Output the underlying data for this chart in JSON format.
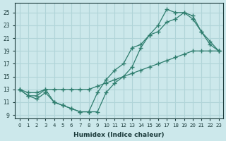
{
  "xlabel": "Humidex (Indice chaleur)",
  "xlim": [
    -0.5,
    23.5
  ],
  "ylim": [
    8.5,
    26.5
  ],
  "xticks": [
    0,
    1,
    2,
    3,
    4,
    5,
    6,
    7,
    8,
    9,
    10,
    11,
    12,
    13,
    14,
    15,
    16,
    17,
    18,
    19,
    20,
    21,
    22,
    23
  ],
  "yticks": [
    9,
    11,
    13,
    15,
    17,
    19,
    21,
    23,
    25
  ],
  "bg_color": "#cce8eb",
  "grid_color": "#b0d4d8",
  "line_color": "#2e7d6e",
  "line1_x": [
    0,
    1,
    2,
    3,
    4,
    5,
    6,
    7,
    8,
    9,
    10,
    11,
    12,
    13,
    14,
    15,
    16,
    17,
    18,
    19,
    20,
    21,
    22,
    23
  ],
  "line1_y": [
    13,
    12,
    11.5,
    12.5,
    11,
    10.5,
    10,
    9.5,
    9.5,
    12.5,
    14.5,
    16,
    17,
    19.5,
    20,
    21.5,
    22,
    23.5,
    24,
    25,
    24.5,
    22,
    20.5,
    19
  ],
  "line2_x": [
    0,
    1,
    2,
    3,
    4,
    5,
    6,
    7,
    8,
    9,
    10,
    11,
    12,
    13,
    14,
    15,
    16,
    17,
    18,
    19,
    20,
    21,
    22,
    23
  ],
  "line2_y": [
    13,
    12.5,
    12.5,
    13,
    13,
    13,
    13,
    13,
    13,
    13.5,
    14,
    14.5,
    15,
    15.5,
    16,
    16.5,
    17,
    17.5,
    18,
    18.5,
    19,
    19,
    19,
    19
  ],
  "line3_x": [
    0,
    1,
    2,
    3,
    4,
    5,
    6,
    7,
    8,
    9,
    10,
    11,
    12,
    13,
    14,
    15,
    16,
    17,
    18,
    19,
    20,
    21,
    22,
    23
  ],
  "line3_y": [
    13,
    12,
    12,
    13,
    11,
    10.5,
    10,
    9.5,
    9.5,
    9.5,
    12.5,
    14,
    15,
    16.5,
    19.5,
    21.5,
    23,
    25.5,
    25,
    25,
    24,
    22,
    20,
    19
  ]
}
